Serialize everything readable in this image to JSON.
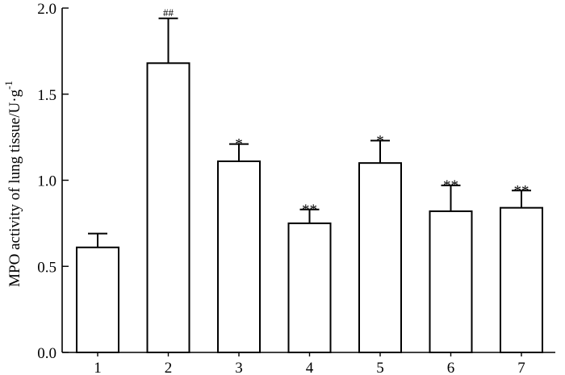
{
  "chart_data": {
    "type": "bar",
    "categories": [
      "1",
      "2",
      "3",
      "4",
      "5",
      "6",
      "7"
    ],
    "values": [
      0.61,
      1.68,
      1.11,
      0.75,
      1.1,
      0.82,
      0.84
    ],
    "errors": [
      0.08,
      0.26,
      0.1,
      0.08,
      0.13,
      0.15,
      0.1
    ],
    "annotations": [
      "",
      "##",
      "*",
      "**",
      "*",
      "**",
      "**"
    ],
    "title": "",
    "xlabel": "",
    "ylabel": "MPO activity of lung tissue/U·g",
    "ylabel_superscript": "-1",
    "ylim": [
      0.0,
      2.0
    ],
    "yticks": [
      "0.0",
      "0.5",
      "1.0",
      "1.5",
      "2.0"
    ],
    "grid": false,
    "colors": {
      "bar_fill": "#ffffff",
      "bar_stroke": "#000000"
    }
  }
}
